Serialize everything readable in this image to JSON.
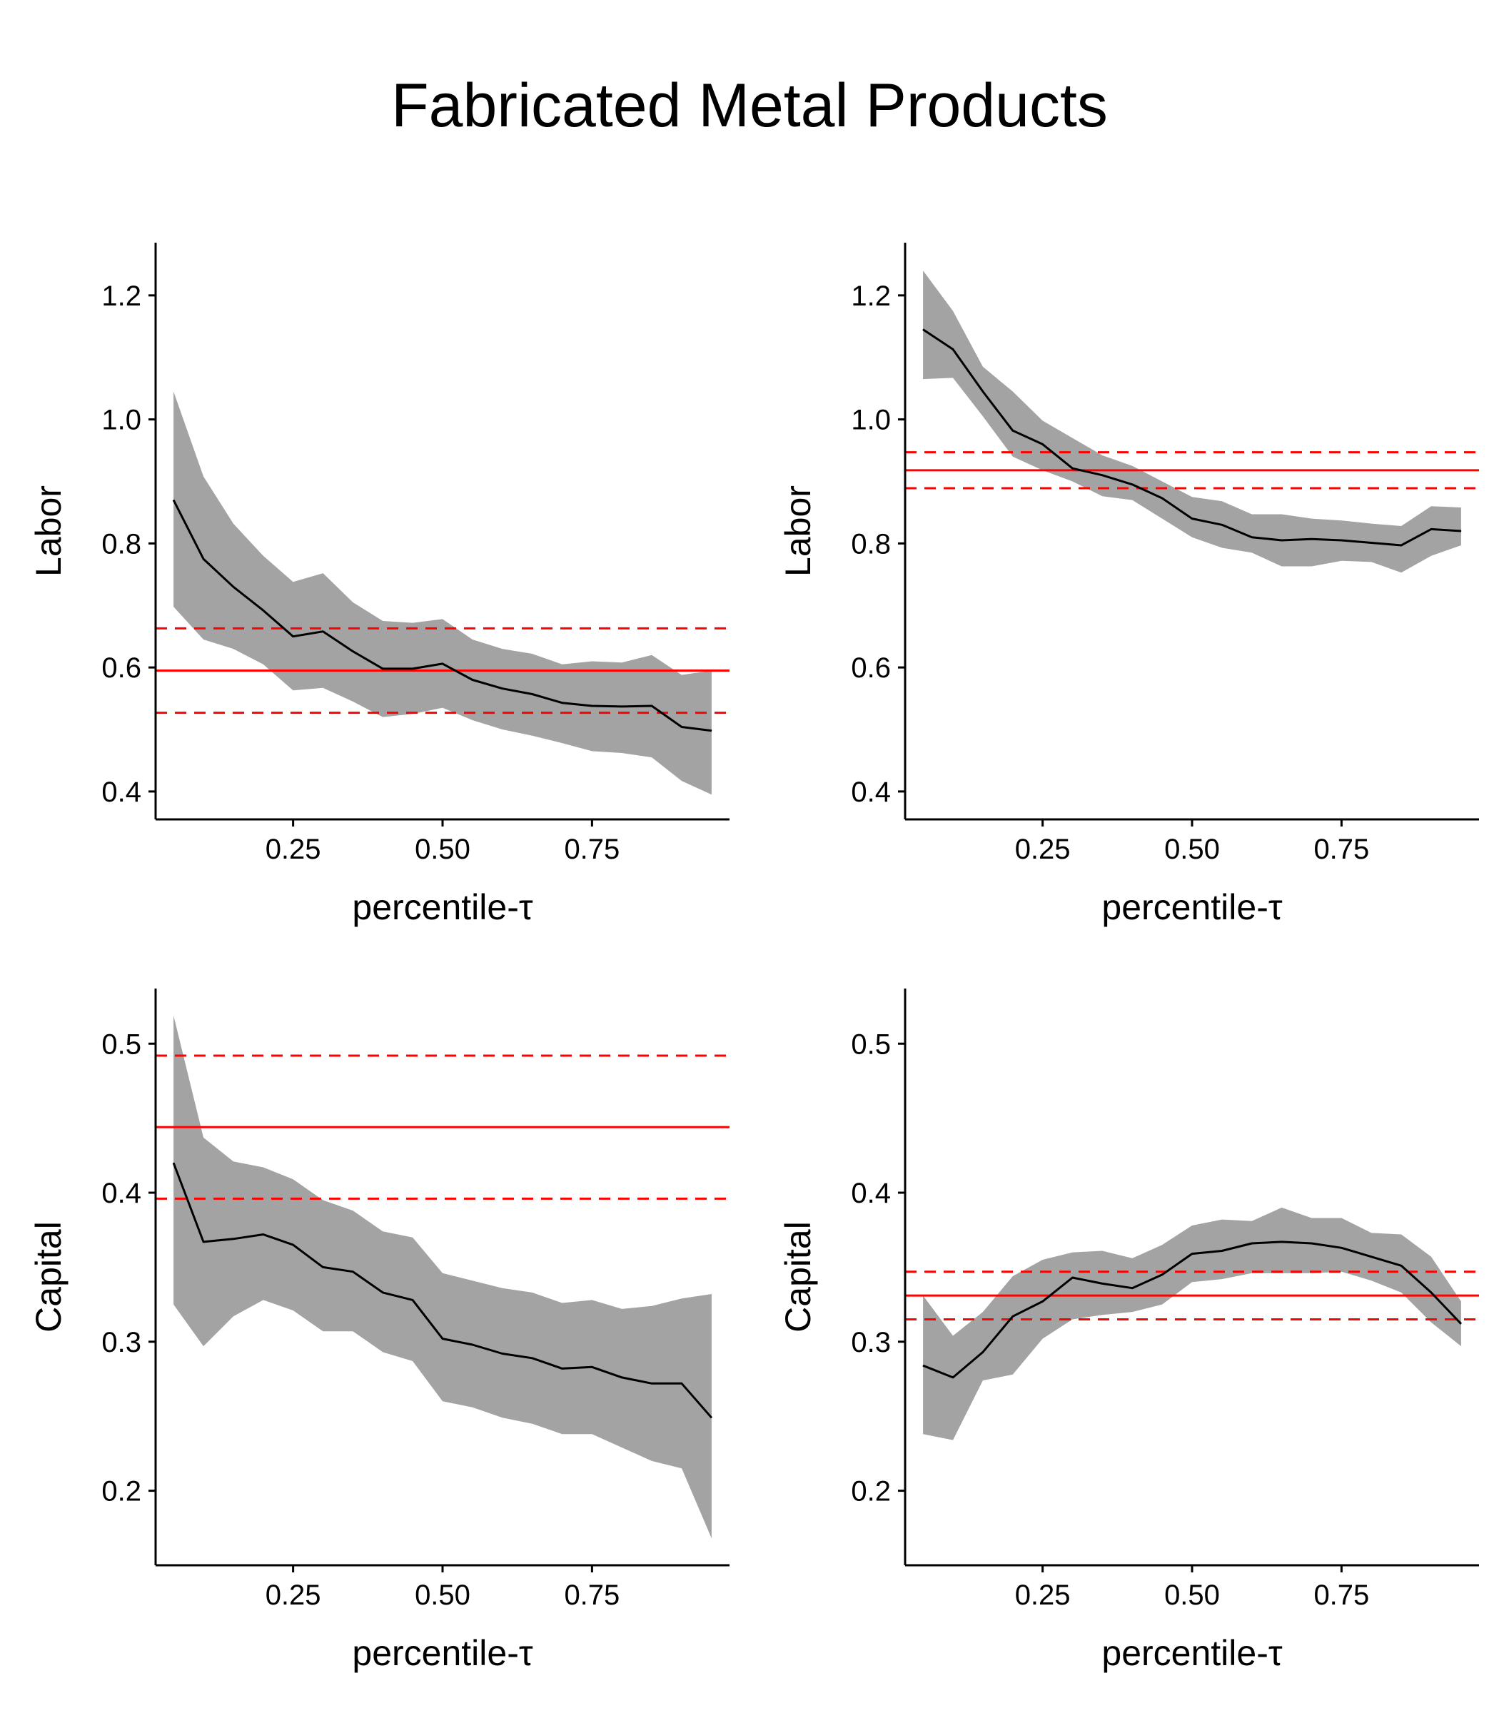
{
  "title": "Fabricated Metal Products",
  "chart_data": [
    {
      "type": "line",
      "position": "top-left",
      "xlabel": "percentile-τ",
      "ylabel": "Labor",
      "xticks": [
        0.25,
        0.5,
        0.75
      ],
      "xtick_labels": [
        "0.25",
        "0.50",
        "0.75"
      ],
      "xlim": [
        0.02,
        0.98
      ],
      "yticks": [
        0.4,
        0.6,
        0.8,
        1.0,
        1.2
      ],
      "ytick_labels": [
        "0.4",
        "0.6",
        "0.8",
        "1.0",
        "1.2"
      ],
      "ylim": [
        0.355,
        1.285
      ],
      "x": [
        0.05,
        0.1,
        0.15,
        0.2,
        0.25,
        0.3,
        0.35,
        0.4,
        0.45,
        0.5,
        0.55,
        0.6,
        0.65,
        0.7,
        0.75,
        0.8,
        0.85,
        0.9,
        0.95
      ],
      "estimate": [
        0.87,
        0.775,
        0.73,
        0.692,
        0.65,
        0.658,
        0.626,
        0.598,
        0.598,
        0.606,
        0.58,
        0.566,
        0.557,
        0.543,
        0.538,
        0.537,
        0.538,
        0.504,
        0.498
      ],
      "ci_upper": [
        1.045,
        0.908,
        0.832,
        0.78,
        0.738,
        0.752,
        0.705,
        0.675,
        0.672,
        0.678,
        0.645,
        0.63,
        0.622,
        0.605,
        0.61,
        0.608,
        0.62,
        0.588,
        0.595
      ],
      "ci_lower": [
        0.698,
        0.645,
        0.63,
        0.605,
        0.563,
        0.567,
        0.545,
        0.52,
        0.525,
        0.535,
        0.515,
        0.5,
        0.49,
        0.478,
        0.465,
        0.462,
        0.455,
        0.417,
        0.395
      ],
      "hline": {
        "value": 0.595,
        "lower": 0.527,
        "upper": 0.663
      }
    },
    {
      "type": "line",
      "position": "top-right",
      "xlabel": "percentile-τ",
      "ylabel": "Labor",
      "xticks": [
        0.25,
        0.5,
        0.75
      ],
      "xtick_labels": [
        "0.25",
        "0.50",
        "0.75"
      ],
      "xlim": [
        0.02,
        0.98
      ],
      "yticks": [
        0.4,
        0.6,
        0.8,
        1.0,
        1.2
      ],
      "ytick_labels": [
        "0.4",
        "0.6",
        "0.8",
        "1.0",
        "1.2"
      ],
      "ylim": [
        0.355,
        1.285
      ],
      "x": [
        0.05,
        0.1,
        0.15,
        0.2,
        0.25,
        0.3,
        0.35,
        0.4,
        0.45,
        0.5,
        0.55,
        0.6,
        0.65,
        0.7,
        0.75,
        0.8,
        0.85,
        0.9,
        0.95
      ],
      "estimate": [
        1.145,
        1.113,
        1.045,
        0.982,
        0.96,
        0.921,
        0.91,
        0.895,
        0.873,
        0.84,
        0.83,
        0.81,
        0.805,
        0.807,
        0.805,
        0.801,
        0.797,
        0.823,
        0.82
      ],
      "ci_upper": [
        1.24,
        1.175,
        1.085,
        1.045,
        0.998,
        0.97,
        0.942,
        0.925,
        0.9,
        0.875,
        0.868,
        0.847,
        0.847,
        0.84,
        0.837,
        0.832,
        0.828,
        0.86,
        0.858
      ],
      "ci_lower": [
        1.065,
        1.067,
        1.005,
        0.94,
        0.918,
        0.9,
        0.876,
        0.87,
        0.84,
        0.81,
        0.793,
        0.785,
        0.763,
        0.763,
        0.772,
        0.77,
        0.753,
        0.78,
        0.797
      ],
      "hline": {
        "value": 0.918,
        "lower": 0.889,
        "upper": 0.947
      }
    },
    {
      "type": "line",
      "position": "bottom-left",
      "xlabel": "percentile-τ",
      "ylabel": "Capital",
      "xticks": [
        0.25,
        0.5,
        0.75
      ],
      "xtick_labels": [
        "0.25",
        "0.50",
        "0.75"
      ],
      "xlim": [
        0.02,
        0.98
      ],
      "yticks": [
        0.2,
        0.3,
        0.4,
        0.5
      ],
      "ytick_labels": [
        "0.2",
        "0.3",
        "0.4",
        "0.5"
      ],
      "ylim": [
        0.15,
        0.537
      ],
      "x": [
        0.05,
        0.1,
        0.15,
        0.2,
        0.25,
        0.3,
        0.35,
        0.4,
        0.45,
        0.5,
        0.55,
        0.6,
        0.65,
        0.7,
        0.75,
        0.8,
        0.85,
        0.9,
        0.95
      ],
      "estimate": [
        0.42,
        0.367,
        0.369,
        0.372,
        0.365,
        0.35,
        0.347,
        0.333,
        0.328,
        0.302,
        0.298,
        0.292,
        0.289,
        0.282,
        0.283,
        0.276,
        0.272,
        0.272,
        0.249
      ],
      "ci_upper": [
        0.519,
        0.437,
        0.421,
        0.417,
        0.409,
        0.395,
        0.388,
        0.374,
        0.37,
        0.346,
        0.341,
        0.336,
        0.333,
        0.326,
        0.328,
        0.322,
        0.324,
        0.329,
        0.332
      ],
      "ci_lower": [
        0.325,
        0.297,
        0.317,
        0.328,
        0.321,
        0.307,
        0.307,
        0.293,
        0.287,
        0.26,
        0.256,
        0.249,
        0.245,
        0.238,
        0.238,
        0.229,
        0.22,
        0.215,
        0.168
      ],
      "hline": {
        "value": 0.444,
        "lower": 0.396,
        "upper": 0.492
      }
    },
    {
      "type": "line",
      "position": "bottom-right",
      "xlabel": "percentile-τ",
      "ylabel": "Capital",
      "xticks": [
        0.25,
        0.5,
        0.75
      ],
      "xtick_labels": [
        "0.25",
        "0.50",
        "0.75"
      ],
      "xlim": [
        0.02,
        0.98
      ],
      "yticks": [
        0.2,
        0.3,
        0.4,
        0.5
      ],
      "ytick_labels": [
        "0.2",
        "0.3",
        "0.4",
        "0.5"
      ],
      "ylim": [
        0.15,
        0.537
      ],
      "x": [
        0.05,
        0.1,
        0.15,
        0.2,
        0.25,
        0.3,
        0.35,
        0.4,
        0.45,
        0.5,
        0.55,
        0.6,
        0.65,
        0.7,
        0.75,
        0.8,
        0.85,
        0.9,
        0.95
      ],
      "estimate": [
        0.284,
        0.276,
        0.293,
        0.317,
        0.327,
        0.343,
        0.339,
        0.336,
        0.345,
        0.359,
        0.361,
        0.366,
        0.367,
        0.366,
        0.363,
        0.357,
        0.351,
        0.333,
        0.312
      ],
      "ci_upper": [
        0.331,
        0.304,
        0.32,
        0.344,
        0.355,
        0.36,
        0.361,
        0.356,
        0.365,
        0.378,
        0.382,
        0.381,
        0.39,
        0.383,
        0.383,
        0.373,
        0.372,
        0.357,
        0.327
      ],
      "ci_lower": [
        0.238,
        0.234,
        0.274,
        0.278,
        0.302,
        0.315,
        0.318,
        0.32,
        0.325,
        0.34,
        0.342,
        0.346,
        0.346,
        0.346,
        0.347,
        0.341,
        0.333,
        0.313,
        0.297
      ],
      "hline": {
        "value": 0.331,
        "lower": 0.315,
        "upper": 0.347
      }
    }
  ],
  "colors": {
    "band": "#a3a3a3",
    "estimate_line": "#000000",
    "reference_line": "#ff0000",
    "axis": "#000000"
  }
}
